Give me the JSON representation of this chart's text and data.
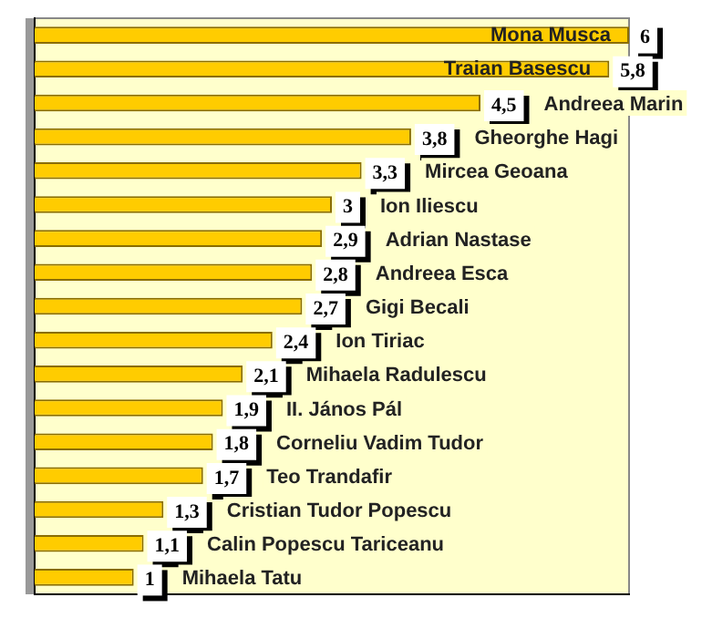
{
  "chart_data": {
    "type": "bar",
    "orientation": "horizontal",
    "relative": false,
    "categories": [
      "Mona Musca",
      "Traian Basescu",
      "Andreea Marin",
      "Gheorghe Hagi",
      "Mircea Geoana",
      "Ion Iliescu",
      "Adrian Nastase",
      "Andreea Esca",
      "Gigi Becali",
      "Ion Tiriac",
      "Mihaela Radulescu",
      "II. János Pál",
      "Corneliu Vadim Tudor",
      "Teo Trandafir",
      "Cristian Tudor Popescu",
      "Calin Popescu Tariceanu",
      "Mihaela Tatu"
    ],
    "values": [
      6,
      5.8,
      4.5,
      3.8,
      3.3,
      3,
      2.9,
      2.8,
      2.7,
      2.4,
      2.1,
      1.9,
      1.8,
      1.7,
      1.3,
      1.1,
      1
    ],
    "value_labels": [
      "6",
      "5,8",
      "4,5",
      "3,8",
      "3,3",
      "3",
      "2,9",
      "2,8",
      "2,7",
      "2,4",
      "2,1",
      "1,9",
      "1,8",
      "1,7",
      "1,3",
      "1,1",
      "1"
    ],
    "color": "#ffcc00",
    "legend": false
  }
}
